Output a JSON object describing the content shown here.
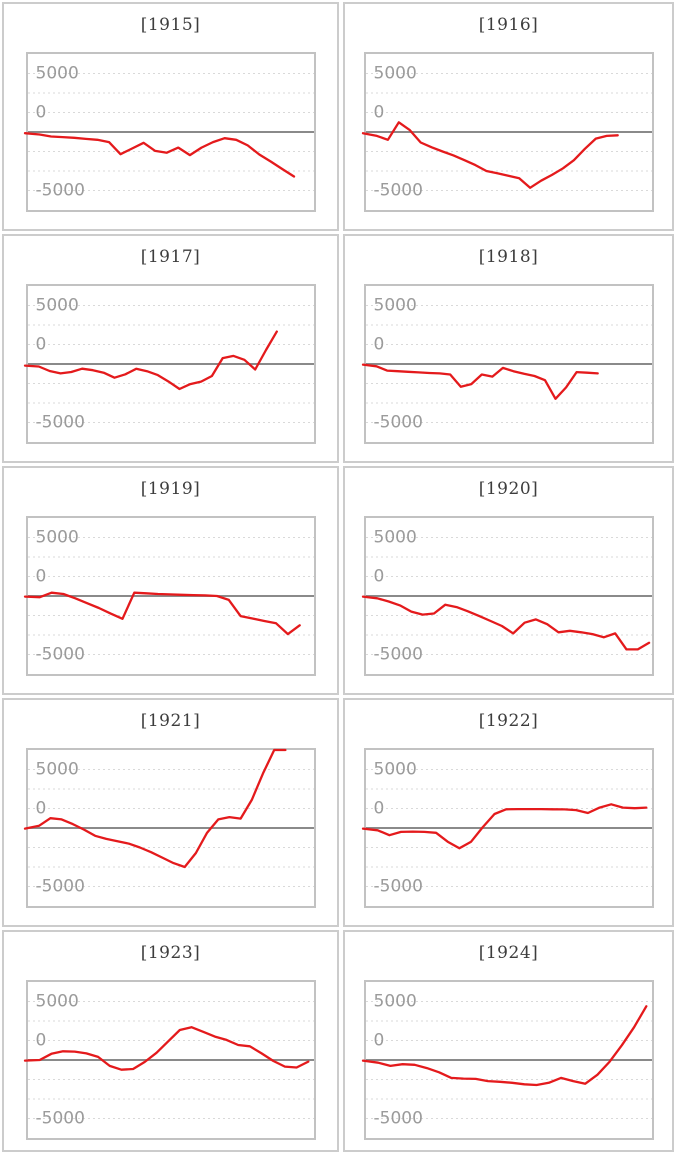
{
  "colors": {
    "line": "#e41a1c",
    "zero_line": "#8a8a8a",
    "grid": "#d9d9d9",
    "box_border": "#c2c2c2",
    "card_border": "#cccccc",
    "axis_label": "#9b9b9b",
    "title": "#3d3d3d",
    "background": "#ffffff"
  },
  "axis": {
    "tick_labels": [
      "5000",
      "0",
      "-5000"
    ]
  },
  "chart_data": {
    "type": "line",
    "layout": "5 rows x 2 columns of small-multiple line charts",
    "ylim": [
      -5000,
      5000
    ],
    "yticks": [
      5000,
      0,
      -5000
    ],
    "ytick_labels": [
      "5000",
      "0",
      "-5000"
    ],
    "x_tick_labels": "none (x axis unlabeled)",
    "grid": "dotted horizontal gridlines every 1250 units, solid gray line at 0",
    "legend": "none",
    "series_color": "#e41a1c",
    "charts": [
      {
        "title": "[1915]",
        "x_span": 0.93,
        "values": [
          -80,
          -160,
          -290,
          -330,
          -370,
          -440,
          -500,
          -650,
          -1420,
          -1060,
          -690,
          -1210,
          -1330,
          -1000,
          -1480,
          -1000,
          -650,
          -400,
          -500,
          -860,
          -1440,
          -1900,
          -2380,
          -2850
        ]
      },
      {
        "title": "[1916]",
        "x_span": 0.88,
        "values": [
          -80,
          -250,
          -500,
          620,
          120,
          -670,
          -980,
          -1250,
          -1500,
          -1810,
          -2120,
          -2500,
          -2650,
          -2810,
          -2960,
          -3580,
          -3120,
          -2750,
          -2330,
          -1810,
          -1080,
          -420,
          -250,
          -210
        ]
      },
      {
        "title": "[1917]",
        "x_span": 0.87,
        "values": [
          -100,
          -160,
          -450,
          -600,
          -510,
          -300,
          -400,
          -560,
          -880,
          -660,
          -310,
          -460,
          -710,
          -1130,
          -1600,
          -1290,
          -1130,
          -770,
          380,
          520,
          270,
          -350,
          900,
          2080
        ]
      },
      {
        "title": "[1918]",
        "x_span": 0.81,
        "values": [
          -40,
          -150,
          -420,
          -460,
          -500,
          -540,
          -580,
          -600,
          -670,
          -1460,
          -1290,
          -670,
          -810,
          -250,
          -460,
          -630,
          -770,
          -1040,
          -2230,
          -1500,
          -520,
          -560,
          -600
        ]
      },
      {
        "title": "[1919]",
        "x_span": 0.95,
        "values": [
          -40,
          -80,
          210,
          130,
          -150,
          -460,
          -770,
          -1130,
          -1460,
          210,
          170,
          130,
          100,
          80,
          60,
          40,
          0,
          -250,
          -1290,
          -1440,
          -1600,
          -1750,
          -2440,
          -1880
        ]
      },
      {
        "title": "[1920]",
        "x_span": 0.99,
        "values": [
          -40,
          -150,
          -350,
          -600,
          -1000,
          -1190,
          -1120,
          -560,
          -710,
          -980,
          -1290,
          -1600,
          -1920,
          -2400,
          -1710,
          -1500,
          -1810,
          -2330,
          -2230,
          -2330,
          -2440,
          -2650,
          -2400,
          -3420,
          -3420,
          -3000
        ]
      },
      {
        "title": "[1921]",
        "x_span": 0.9,
        "values": [
          -40,
          150,
          630,
          550,
          250,
          -100,
          -500,
          -700,
          -850,
          -1000,
          -1250,
          -1550,
          -1900,
          -2250,
          -2500,
          -1600,
          -300,
          550,
          700,
          600,
          1800,
          3500,
          5000,
          5000
        ]
      },
      {
        "title": "[1922]",
        "x_span": 0.98,
        "values": [
          -40,
          -150,
          -460,
          -250,
          -230,
          -250,
          -310,
          -880,
          -1300,
          -880,
          60,
          900,
          1200,
          1210,
          1210,
          1210,
          1200,
          1190,
          1150,
          960,
          1310,
          1520,
          1310,
          1270,
          1310
        ]
      },
      {
        "title": "[1923]",
        "x_span": 0.98,
        "values": [
          -40,
          0,
          400,
          560,
          540,
          420,
          200,
          -380,
          -620,
          -580,
          -120,
          460,
          1190,
          1920,
          2100,
          1810,
          1500,
          1290,
          960,
          880,
          420,
          -60,
          -420,
          -480,
          -100
        ]
      },
      {
        "title": "[1924]",
        "x_span": 0.98,
        "values": [
          -40,
          -170,
          -380,
          -270,
          -310,
          -520,
          -790,
          -1150,
          -1190,
          -1210,
          -1350,
          -1400,
          -1460,
          -1560,
          -1600,
          -1460,
          -1150,
          -1350,
          -1520,
          -940,
          -100,
          950,
          2100,
          3440
        ]
      }
    ]
  }
}
